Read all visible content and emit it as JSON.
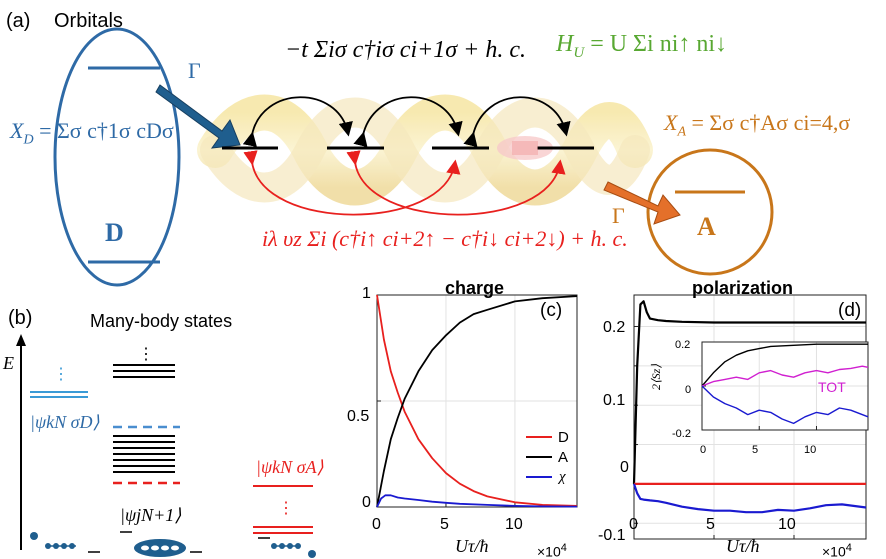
{
  "colors": {
    "donor": "#2e6aa6",
    "acceptor": "#c8761a",
    "hopping": "#000000",
    "soc": "#e8201e",
    "hubbard": "#58a832",
    "chi": "#1a1ad0",
    "tot": "#d020d0",
    "arrow_blue": "#1f5e8e",
    "arrow_orange": "#e4702a"
  },
  "panel_a": {
    "label": "(a)",
    "title": "Orbitals",
    "donor_label": "D",
    "acceptor_label": "A",
    "gamma_left": "Γ",
    "gamma_right": "Γ",
    "xd_lhs": "X",
    "xd_sub": "D",
    "xd_rhs": "= Σσ c†1σ cDσ",
    "xa_lhs": "X",
    "xa_sub": "A",
    "xa_rhs": "= Σσ c†Aσ ci=4,σ",
    "hopping_term": "−t Σiσ c†iσ ci+1σ + h. c.",
    "hubbard_lhs": "H",
    "hubbard_sub": "U",
    "hubbard_rhs": "= U Σi ni↑ ni↓",
    "soc_term": "iλ υz Σi (c†i↑ ci+2↑ − c†i↓ ci+2↓) + h. c."
  },
  "panel_b": {
    "label": "(b)",
    "title": "Many-body states",
    "energy_axis": "E",
    "dots": "⋮",
    "state_donor": "|ψkN σD⟩",
    "state_middle": "|ψjN+1⟩",
    "state_acceptor": "|ψkN σA⟩"
  },
  "panel_c": {
    "title": "charge",
    "label": "(c)",
    "y_ticks": [
      "0",
      "0.5",
      "1"
    ],
    "x_ticks": [
      "0",
      "5",
      "10"
    ],
    "x_label": "Uτ/ħ",
    "x_multiplier": "×10",
    "x_multiplier_exp": "4",
    "legend": [
      "D",
      "A",
      "χ"
    ]
  },
  "panel_d": {
    "title": "polarization",
    "label": "(d)",
    "y_ticks": [
      "-0.1",
      "0",
      "0.1",
      "0.2"
    ],
    "x_ticks": [
      "0",
      "5",
      "10"
    ],
    "x_label": "Uτ/ħ",
    "x_multiplier": "×10",
    "x_multiplier_exp": "4",
    "inset_y_label": "2⟨Sz⟩",
    "inset_y_ticks": [
      "0.2",
      "0",
      "-0.2"
    ],
    "inset_x_ticks": [
      "0",
      "5",
      "10"
    ],
    "inset_legend": "TOT"
  },
  "chart_data": [
    {
      "type": "line",
      "title": "charge",
      "xlabel": "Uτ/ħ ×10^4",
      "ylabel": "",
      "xlim": [
        0,
        14.5
      ],
      "ylim": [
        0,
        1
      ],
      "grid": true,
      "legend": "right",
      "series": [
        {
          "name": "D",
          "color": "#e8201e",
          "x": [
            0,
            0.5,
            1,
            1.5,
            2,
            3,
            4,
            5,
            6,
            7,
            8,
            10,
            12,
            14.5
          ],
          "y": [
            1,
            0.79,
            0.64,
            0.54,
            0.45,
            0.32,
            0.23,
            0.16,
            0.11,
            0.075,
            0.05,
            0.022,
            0.01,
            0.005
          ]
        },
        {
          "name": "A",
          "color": "#000000",
          "x": [
            0,
            0.5,
            1,
            1.5,
            2,
            3,
            4,
            5,
            6,
            7,
            8,
            10,
            12,
            14.5
          ],
          "y": [
            0,
            0.17,
            0.32,
            0.42,
            0.51,
            0.64,
            0.74,
            0.81,
            0.87,
            0.91,
            0.93,
            0.97,
            0.985,
            0.995
          ]
        },
        {
          "name": "χ",
          "color": "#1a1ad0",
          "x": [
            0,
            0.3,
            0.6,
            1,
            1.5,
            2,
            3,
            4,
            5,
            6,
            8,
            10,
            12,
            14.5
          ],
          "y": [
            0,
            0.04,
            0.055,
            0.055,
            0.045,
            0.04,
            0.033,
            0.025,
            0.02,
            0.015,
            0.01,
            0.005,
            0.003,
            0.002
          ]
        }
      ]
    },
    {
      "type": "line",
      "title": "polarization",
      "xlabel": "Uτ/ħ ×10^4",
      "ylabel": "",
      "xlim": [
        0,
        14.5
      ],
      "ylim": [
        -0.07,
        0.24
      ],
      "grid": true,
      "series": [
        {
          "name": "black",
          "color": "#000000",
          "x": [
            0,
            0.2,
            0.4,
            0.6,
            0.8,
            1,
            1.5,
            2,
            3,
            5,
            8,
            11,
            14.5
          ],
          "y": [
            0,
            0.15,
            0.228,
            0.232,
            0.218,
            0.21,
            0.208,
            0.207,
            0.206,
            0.205,
            0.205,
            0.205,
            0.205
          ]
        },
        {
          "name": "red",
          "color": "#e8201e",
          "x": [
            0,
            14.5
          ],
          "y": [
            0,
            0
          ]
        },
        {
          "name": "blue",
          "color": "#1a1ad0",
          "x": [
            0,
            0.2,
            0.4,
            0.6,
            1,
            1.5,
            2,
            3,
            4,
            5,
            6,
            7,
            8,
            9,
            10,
            11,
            12,
            13,
            14.5
          ],
          "y": [
            0,
            -0.012,
            -0.019,
            -0.02,
            -0.021,
            -0.022,
            -0.024,
            -0.029,
            -0.032,
            -0.034,
            -0.034,
            -0.036,
            -0.036,
            -0.033,
            -0.034,
            -0.031,
            -0.027,
            -0.026,
            -0.03
          ]
        }
      ]
    },
    {
      "type": "line",
      "title": "",
      "ylabel": "2⟨Sz⟩",
      "xlim": [
        0,
        14.5
      ],
      "ylim": [
        -0.2,
        0.2
      ],
      "grid": true,
      "series": [
        {
          "name": "black",
          "color": "#000000",
          "x": [
            0,
            1,
            2,
            3,
            4,
            5,
            6,
            8,
            10,
            12,
            14.5
          ],
          "y": [
            0,
            0.06,
            0.11,
            0.14,
            0.16,
            0.17,
            0.18,
            0.185,
            0.19,
            0.19,
            0.19
          ]
        },
        {
          "name": "TOT",
          "color": "#d020d0",
          "x": [
            0,
            1,
            2,
            3,
            4,
            5,
            6,
            7,
            8,
            9,
            10,
            11,
            12,
            13,
            14,
            14.5
          ],
          "y": [
            0,
            0.02,
            0.03,
            0.04,
            0.03,
            0.06,
            0.07,
            0.05,
            0.04,
            0.06,
            0.07,
            0.06,
            0.075,
            0.08,
            0.09,
            0.085
          ]
        },
        {
          "name": "blue",
          "color": "#1a1ad0",
          "x": [
            0,
            1,
            2,
            3,
            4,
            5,
            6,
            7,
            8,
            9,
            10,
            11,
            12,
            13,
            14.5
          ],
          "y": [
            0,
            -0.05,
            -0.08,
            -0.1,
            -0.13,
            -0.11,
            -0.12,
            -0.15,
            -0.17,
            -0.14,
            -0.12,
            -0.13,
            -0.1,
            -0.11,
            -0.14
          ]
        }
      ]
    }
  ]
}
